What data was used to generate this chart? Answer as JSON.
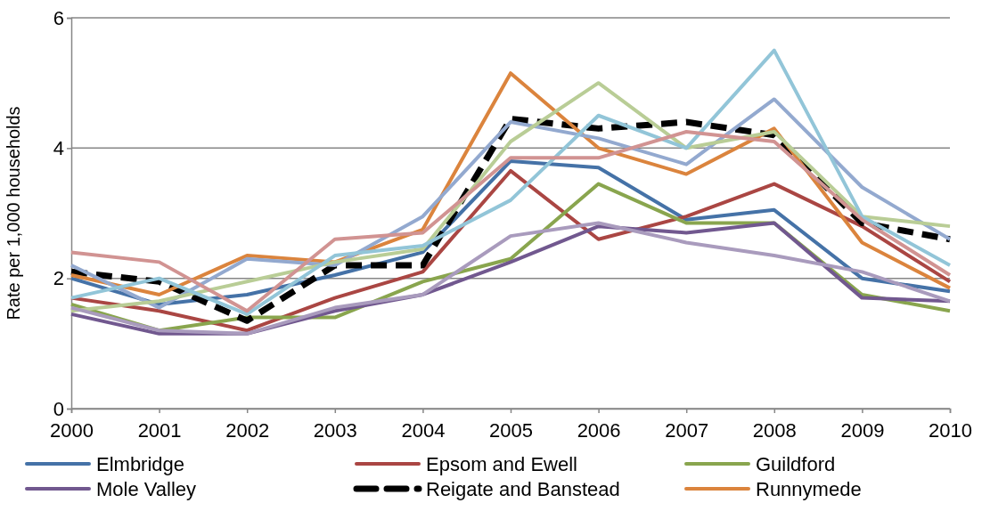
{
  "chart_data": {
    "type": "line",
    "ylabel": "Rate per 1,000 households",
    "x": [
      2000,
      2001,
      2002,
      2003,
      2004,
      2005,
      2006,
      2007,
      2008,
      2009,
      2010
    ],
    "xlim": [
      2000,
      2010
    ],
    "xticks": [
      2000,
      2001,
      2002,
      2003,
      2004,
      2005,
      2006,
      2007,
      2008,
      2009,
      2010
    ],
    "ylim": [
      0,
      6
    ],
    "yticks": [
      0,
      2,
      4,
      6
    ],
    "grid": "y",
    "legend": "bottom",
    "marker": "none",
    "series": [
      {
        "name": "Elmbridge",
        "color": "#4572a7",
        "values": [
          2.0,
          1.6,
          1.75,
          2.05,
          2.4,
          3.8,
          3.7,
          2.9,
          3.05,
          2.0,
          1.8
        ]
      },
      {
        "name": "Epsom and Ewell",
        "color": "#aa4643",
        "values": [
          1.7,
          1.5,
          1.2,
          1.7,
          2.1,
          3.65,
          2.6,
          2.95,
          3.45,
          2.8,
          1.95
        ]
      },
      {
        "name": "Guildford",
        "color": "#89a54e",
        "values": [
          1.6,
          1.2,
          1.4,
          1.4,
          1.95,
          2.3,
          3.45,
          2.85,
          2.85,
          1.75,
          1.5
        ]
      },
      {
        "name": "Mole Valley",
        "color": "#71588f",
        "values": [
          1.45,
          1.15,
          1.15,
          1.5,
          1.75,
          2.25,
          2.8,
          2.7,
          2.85,
          1.7,
          1.65
        ]
      },
      {
        "name": "Reigate and Banstead",
        "color": "#000000",
        "line_style": "dashed",
        "values": [
          2.1,
          1.95,
          1.35,
          2.2,
          2.2,
          4.45,
          4.3,
          4.4,
          4.2,
          2.85,
          2.6
        ]
      },
      {
        "name": "Runnymede",
        "color": "#db843d",
        "values": [
          2.05,
          1.75,
          2.35,
          2.25,
          2.75,
          5.15,
          4.0,
          3.6,
          4.3,
          2.55,
          1.85
        ]
      },
      {
        "color": "#93a9cf",
        "values": [
          2.2,
          1.55,
          2.3,
          2.2,
          2.95,
          4.4,
          4.15,
          3.75,
          4.75,
          3.4,
          2.6
        ]
      },
      {
        "color": "#b9cd96",
        "values": [
          1.5,
          1.65,
          1.95,
          2.25,
          2.45,
          4.1,
          5.0,
          4.0,
          4.25,
          2.95,
          2.8
        ]
      },
      {
        "color": "#92c5d8",
        "values": [
          1.7,
          2.0,
          1.45,
          2.35,
          2.5,
          3.2,
          4.5,
          4.0,
          5.5,
          2.95,
          2.2
        ]
      },
      {
        "color": "#d19392",
        "values": [
          2.4,
          2.25,
          1.5,
          2.6,
          2.7,
          3.85,
          3.85,
          4.25,
          4.1,
          2.9,
          2.05
        ]
      },
      {
        "color": "#a99bbd",
        "values": [
          1.55,
          1.2,
          1.15,
          1.55,
          1.75,
          2.65,
          2.85,
          2.55,
          2.35,
          2.1,
          1.65
        ]
      }
    ]
  }
}
